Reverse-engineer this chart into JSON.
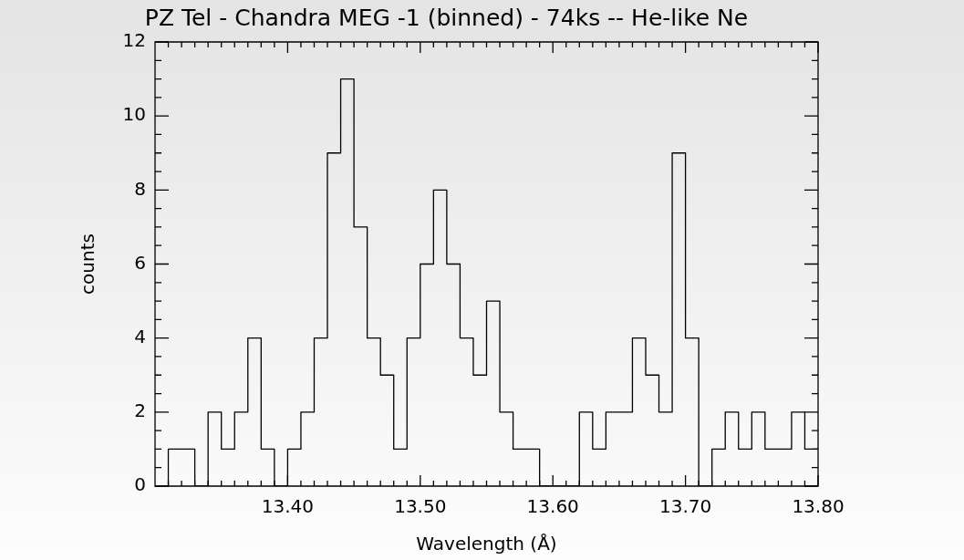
{
  "chart_data": {
    "type": "histogram",
    "title": "PZ Tel - Chandra MEG -1 (binned) - 74ks -- He-like Ne",
    "xlabel": "Wavelength (Å)",
    "ylabel": "counts",
    "color": "#000000",
    "grid": false,
    "bins": [
      13.31,
      13.32,
      13.33,
      13.34,
      13.35,
      13.36,
      13.37,
      13.38,
      13.39,
      13.4,
      13.41,
      13.42,
      13.43,
      13.44,
      13.45,
      13.46,
      13.47,
      13.48,
      13.49,
      13.5,
      13.51,
      13.52,
      13.53,
      13.54,
      13.55,
      13.56,
      13.57,
      13.58,
      13.59,
      13.6,
      13.61,
      13.62,
      13.63,
      13.64,
      13.65,
      13.66,
      13.67,
      13.68,
      13.69,
      13.7,
      13.71,
      13.72,
      13.73,
      13.74,
      13.75,
      13.76,
      13.77,
      13.78,
      13.79,
      13.8
    ],
    "values": [
      1,
      1,
      0,
      2,
      1,
      2,
      4,
      1,
      0,
      1,
      2,
      4,
      9,
      11,
      7,
      4,
      3,
      1,
      4,
      6,
      8,
      6,
      4,
      3,
      5,
      2,
      1,
      1,
      0,
      0,
      0,
      2,
      1,
      2,
      2,
      4,
      3,
      2,
      9,
      4,
      0,
      1,
      2,
      1,
      2,
      1,
      1,
      2,
      1
    ],
    "xlim": [
      13.3,
      13.8
    ],
    "xticks": [
      {
        "value": 13.31,
        "label": null
      },
      {
        "value": 13.32,
        "label": null
      },
      {
        "value": 13.33,
        "label": null
      },
      {
        "value": 13.34,
        "label": null
      },
      {
        "value": 13.35,
        "label": null
      },
      {
        "value": 13.36,
        "label": null
      },
      {
        "value": 13.37,
        "label": null
      },
      {
        "value": 13.38,
        "label": null
      },
      {
        "value": 13.39,
        "label": null
      },
      {
        "value": 13.4,
        "label": "13.40"
      },
      {
        "value": 13.41,
        "label": null
      },
      {
        "value": 13.42,
        "label": null
      },
      {
        "value": 13.43,
        "label": null
      },
      {
        "value": 13.44,
        "label": null
      },
      {
        "value": 13.45,
        "label": null
      },
      {
        "value": 13.46,
        "label": null
      },
      {
        "value": 13.47,
        "label": null
      },
      {
        "value": 13.48,
        "label": null
      },
      {
        "value": 13.49,
        "label": null
      },
      {
        "value": 13.5,
        "label": "13.50"
      },
      {
        "value": 13.51,
        "label": null
      },
      {
        "value": 13.52,
        "label": null
      },
      {
        "value": 13.53,
        "label": null
      },
      {
        "value": 13.54,
        "label": null
      },
      {
        "value": 13.55,
        "label": null
      },
      {
        "value": 13.56,
        "label": null
      },
      {
        "value": 13.57,
        "label": null
      },
      {
        "value": 13.58,
        "label": null
      },
      {
        "value": 13.59,
        "label": null
      },
      {
        "value": 13.6,
        "label": "13.60"
      },
      {
        "value": 13.61,
        "label": null
      },
      {
        "value": 13.62,
        "label": null
      },
      {
        "value": 13.63,
        "label": null
      },
      {
        "value": 13.64,
        "label": null
      },
      {
        "value": 13.65,
        "label": null
      },
      {
        "value": 13.66,
        "label": null
      },
      {
        "value": 13.67,
        "label": null
      },
      {
        "value": 13.68,
        "label": null
      },
      {
        "value": 13.69,
        "label": null
      },
      {
        "value": 13.7,
        "label": "13.70"
      },
      {
        "value": 13.71,
        "label": null
      },
      {
        "value": 13.72,
        "label": null
      },
      {
        "value": 13.73,
        "label": null
      },
      {
        "value": 13.74,
        "label": null
      },
      {
        "value": 13.75,
        "label": null
      },
      {
        "value": 13.76,
        "label": null
      },
      {
        "value": 13.77,
        "label": null
      },
      {
        "value": 13.78,
        "label": null
      },
      {
        "value": 13.79,
        "label": null
      },
      {
        "value": 13.8,
        "label": "13.80"
      }
    ],
    "ylim": [
      0,
      12
    ],
    "yticks": [
      0,
      {
        "value": 0.5,
        "label": null
      },
      {
        "value": 1,
        "label": null
      },
      {
        "value": 1.5,
        "label": null
      },
      2,
      {
        "value": 2.5,
        "label": null
      },
      {
        "value": 3,
        "label": null
      },
      {
        "value": 3.5,
        "label": null
      },
      4,
      {
        "value": 4.5,
        "label": null
      },
      {
        "value": 5,
        "label": null
      },
      {
        "value": 5.5,
        "label": null
      },
      6,
      {
        "value": 6.5,
        "label": null
      },
      {
        "value": 7,
        "label": null
      },
      {
        "value": 7.5,
        "label": null
      },
      8,
      {
        "value": 8.5,
        "label": null
      },
      {
        "value": 9,
        "label": null
      },
      {
        "value": 9.5,
        "label": null
      },
      10,
      {
        "value": 10.5,
        "label": null
      },
      {
        "value": 11,
        "label": null
      },
      {
        "value": 11.5,
        "label": null
      },
      12
    ]
  }
}
